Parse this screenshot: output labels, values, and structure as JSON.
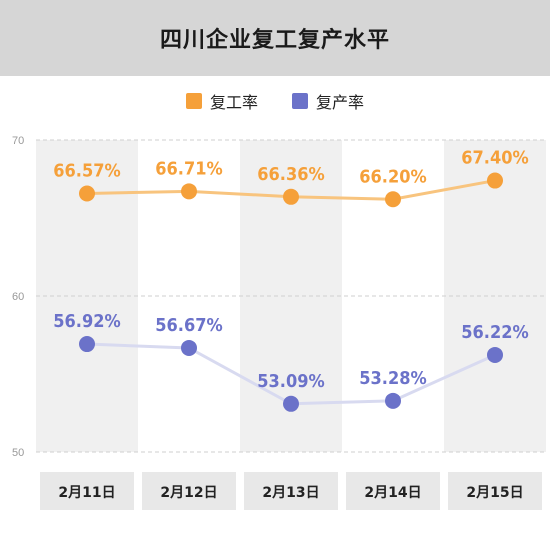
{
  "chart_data": {
    "type": "line",
    "title": "四川企业复工复产水平",
    "categories": [
      "2月11日",
      "2月12日",
      "2月13日",
      "2月14日",
      "2月15日"
    ],
    "series": [
      {
        "name": "复工率",
        "color": "#f5a03a",
        "line_color": "#f8c47e",
        "values": [
          66.57,
          66.71,
          66.36,
          66.2,
          67.4
        ],
        "labels": [
          "66.57%",
          "66.71%",
          "66.36%",
          "66.20%",
          "67.40%"
        ]
      },
      {
        "name": "复产率",
        "color": "#6b72c9",
        "line_color": "#d8daf0",
        "values": [
          56.92,
          56.67,
          53.09,
          53.28,
          56.22
        ],
        "labels": [
          "56.92%",
          "56.67%",
          "53.09%",
          "53.28%",
          "56.22%"
        ]
      }
    ],
    "yticks": [
      50,
      60,
      70
    ],
    "ylim": [
      50,
      70
    ],
    "legend": "top-center",
    "grid": true
  }
}
